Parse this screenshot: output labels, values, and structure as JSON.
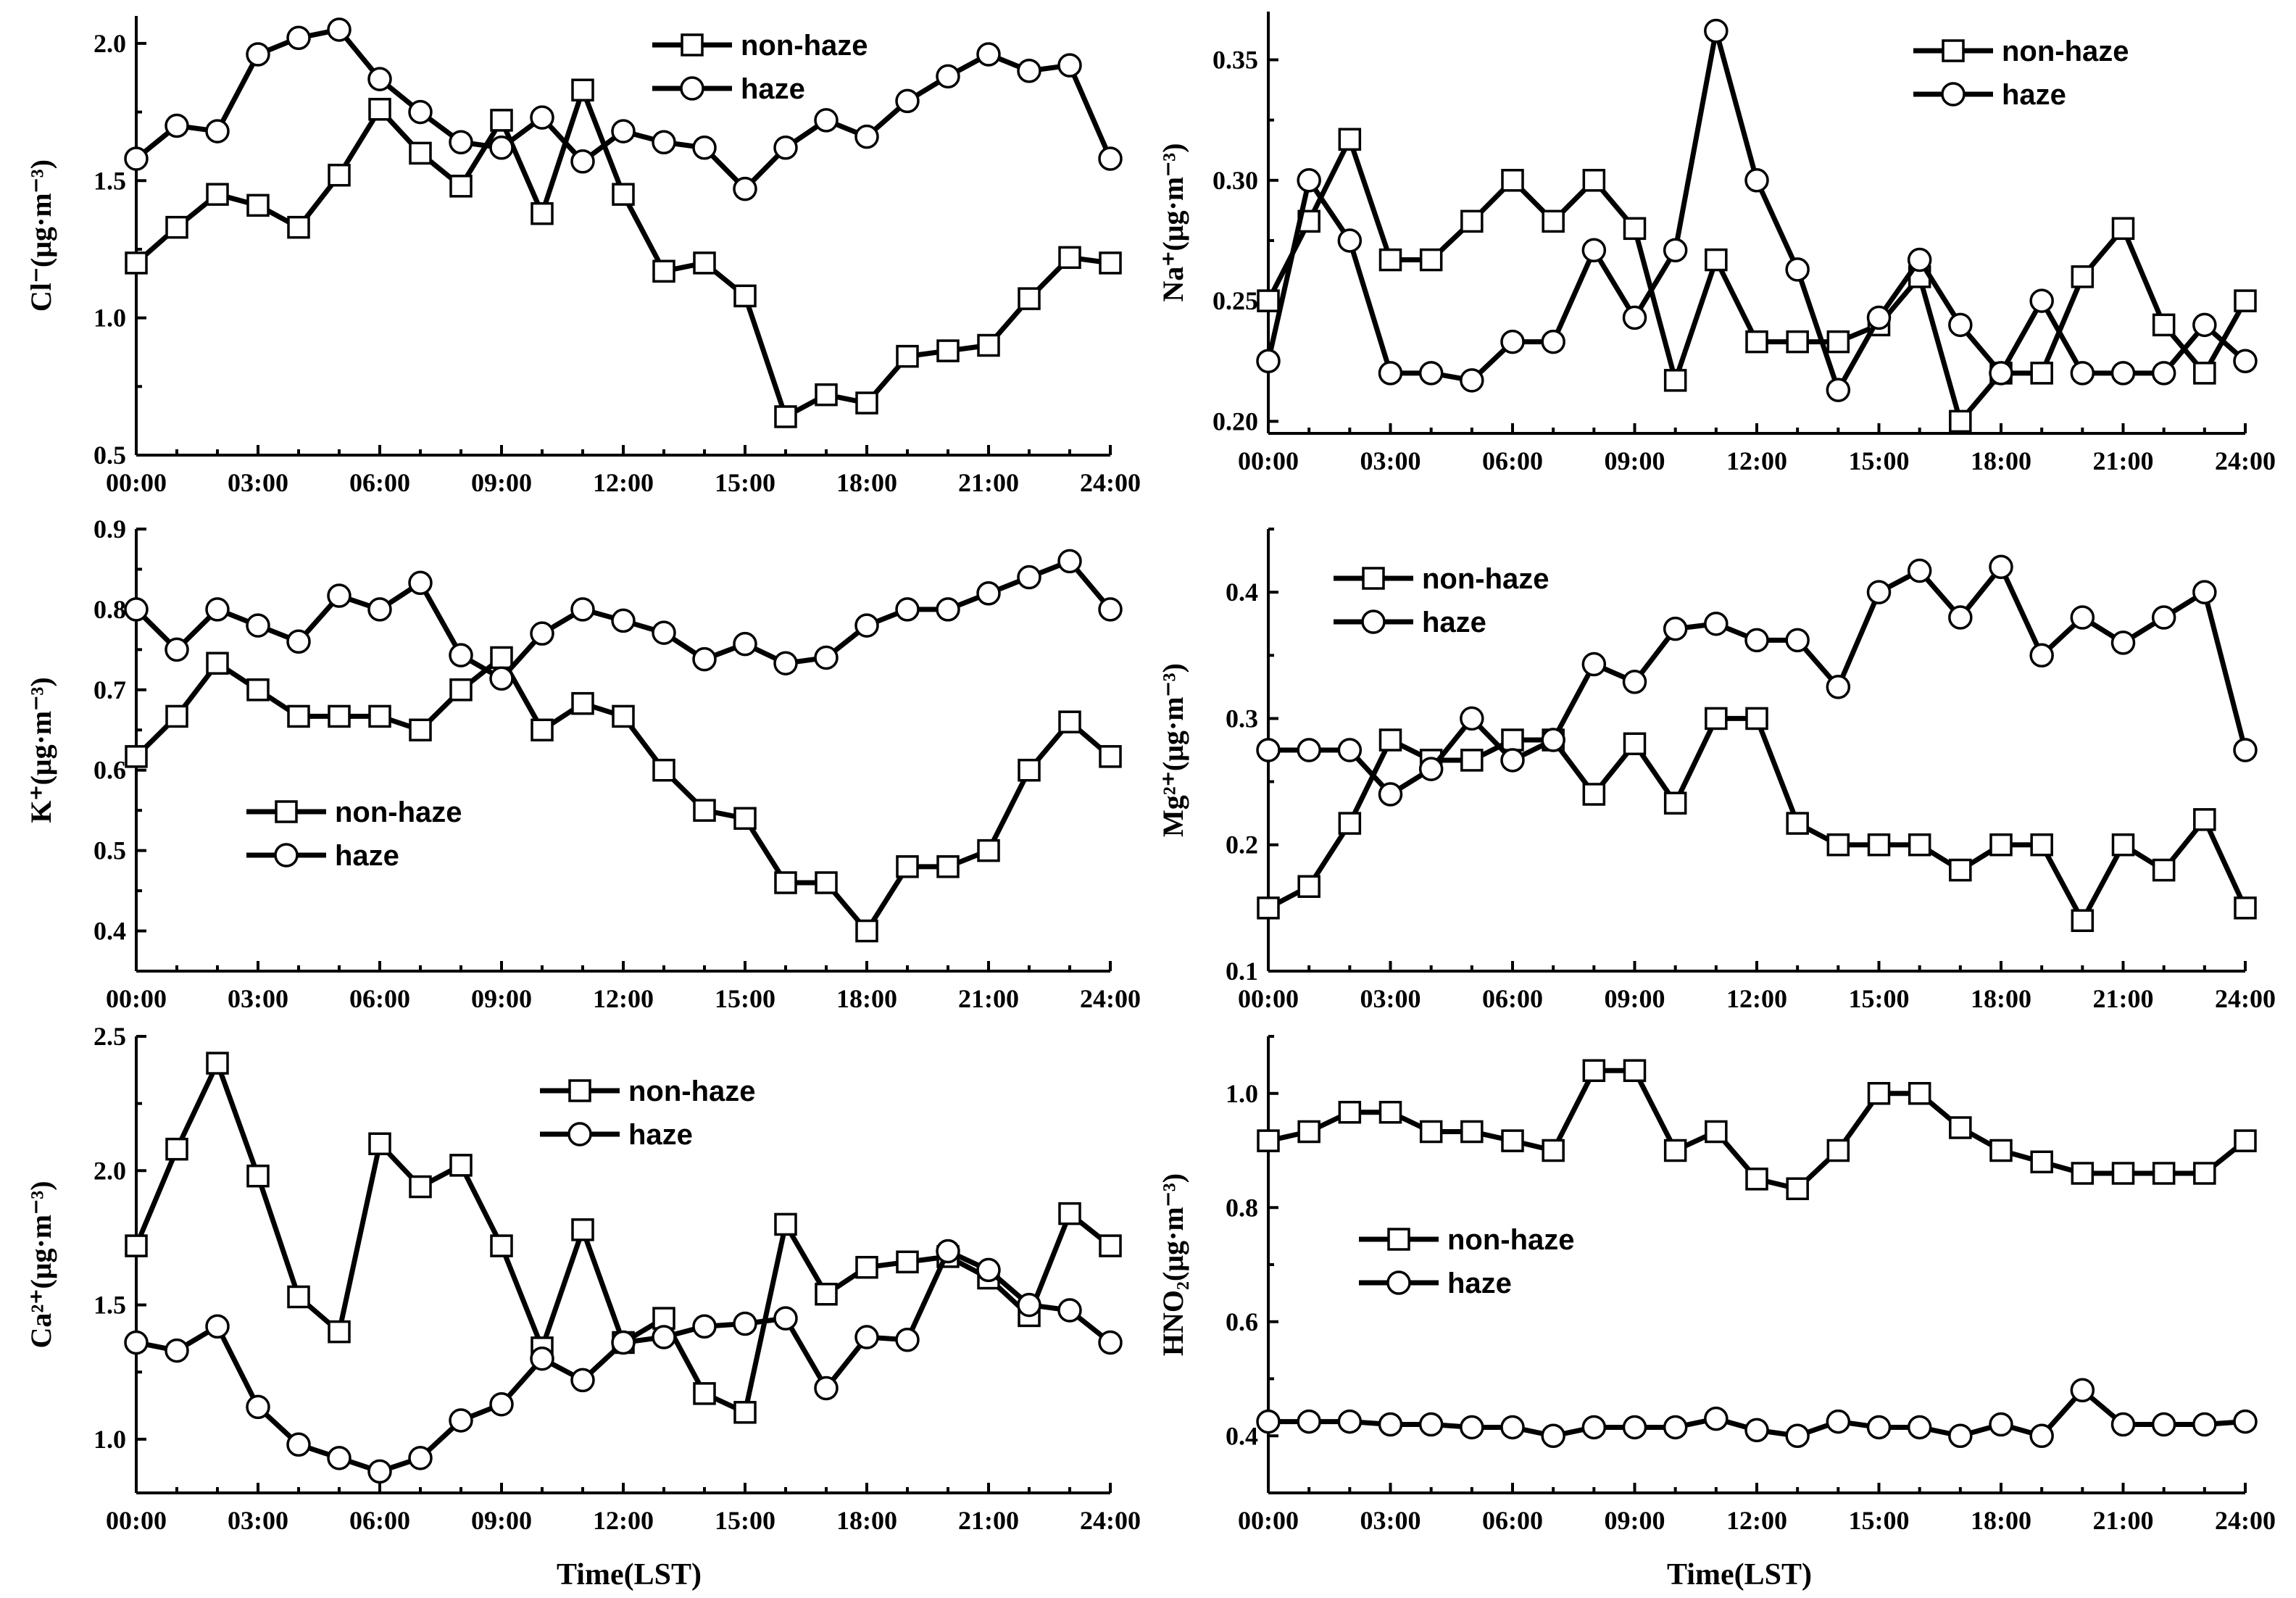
{
  "xlabel": "Time(LST)",
  "chart_data": [
    {
      "type": "line",
      "id": "cl",
      "ylabel": "Cl⁻(μg·m⁻³)",
      "ylim": [
        0.5,
        2.1
      ],
      "yticks": [
        "0.5",
        "1.0",
        "1.5",
        "2.0"
      ],
      "xticks": [
        "00:00",
        "03:00",
        "06:00",
        "09:00",
        "12:00",
        "15:00",
        "18:00",
        "21:00",
        "24:00"
      ],
      "x": [
        0,
        1,
        2,
        3,
        4,
        5,
        6,
        7,
        8,
        9,
        10,
        11,
        12,
        13,
        14,
        15,
        16,
        17,
        18,
        19,
        20,
        21,
        22,
        23,
        24
      ],
      "legend": "top-right",
      "series": [
        {
          "name": "non-haze",
          "marker": "square",
          "values": [
            1.2,
            1.33,
            1.45,
            1.41,
            1.33,
            1.52,
            1.76,
            1.6,
            1.48,
            1.72,
            1.38,
            1.83,
            1.45,
            1.17,
            1.2,
            1.08,
            0.64,
            0.72,
            0.69,
            0.86,
            0.88,
            0.9,
            1.07,
            1.22,
            1.2
          ]
        },
        {
          "name": "haze",
          "marker": "circle",
          "values": [
            1.58,
            1.7,
            1.68,
            1.96,
            2.02,
            2.05,
            1.87,
            1.75,
            1.64,
            1.62,
            1.73,
            1.57,
            1.68,
            1.64,
            1.62,
            1.47,
            1.62,
            1.72,
            1.66,
            1.79,
            1.88,
            1.96,
            1.9,
            1.92,
            1.58
          ]
        }
      ]
    },
    {
      "type": "line",
      "id": "na",
      "ylabel": "Na⁺(μg·m⁻³)",
      "ylim": [
        0.195,
        0.37
      ],
      "yticks": [
        "0.20",
        "0.25",
        "0.30",
        "0.35"
      ],
      "xticks": [
        "00:00",
        "03:00",
        "06:00",
        "09:00",
        "12:00",
        "15:00",
        "18:00",
        "21:00",
        "24:00"
      ],
      "x": [
        0,
        1,
        2,
        3,
        4,
        5,
        6,
        7,
        8,
        9,
        10,
        11,
        12,
        13,
        14,
        15,
        16,
        17,
        18,
        19,
        20,
        21,
        22,
        23,
        24
      ],
      "legend": "top-right",
      "series": [
        {
          "name": "non-haze",
          "marker": "square",
          "values": [
            0.25,
            0.283,
            0.317,
            0.267,
            0.267,
            0.283,
            0.3,
            0.283,
            0.3,
            0.28,
            0.217,
            0.267,
            0.233,
            0.233,
            0.233,
            0.24,
            0.26,
            0.2,
            0.22,
            0.22,
            0.26,
            0.28,
            0.24,
            0.22,
            0.25
          ]
        },
        {
          "name": "haze",
          "marker": "circle",
          "values": [
            0.225,
            0.3,
            0.275,
            0.22,
            0.22,
            0.217,
            0.233,
            0.233,
            0.271,
            0.243,
            0.271,
            0.362,
            0.3,
            0.263,
            0.213,
            0.243,
            0.267,
            0.24,
            0.22,
            0.25,
            0.22,
            0.22,
            0.22,
            0.24,
            0.225
          ]
        }
      ]
    },
    {
      "type": "line",
      "id": "k",
      "ylabel": "K⁺(μg·m⁻³)",
      "ylim": [
        0.35,
        0.9
      ],
      "yticks": [
        "0.4",
        "0.5",
        "0.6",
        "0.7",
        "0.8",
        "0.9"
      ],
      "xticks": [
        "00:00",
        "03:00",
        "06:00",
        "09:00",
        "12:00",
        "15:00",
        "18:00",
        "21:00",
        "24:00"
      ],
      "x": [
        0,
        1,
        2,
        3,
        4,
        5,
        6,
        7,
        8,
        9,
        10,
        11,
        12,
        13,
        14,
        15,
        16,
        17,
        18,
        19,
        20,
        21,
        22,
        23,
        24
      ],
      "legend": "middle-left",
      "series": [
        {
          "name": "non-haze",
          "marker": "square",
          "values": [
            0.617,
            0.667,
            0.733,
            0.7,
            0.667,
            0.667,
            0.667,
            0.65,
            0.7,
            0.74,
            0.65,
            0.683,
            0.667,
            0.6,
            0.55,
            0.54,
            0.46,
            0.46,
            0.4,
            0.48,
            0.48,
            0.5,
            0.6,
            0.66,
            0.617
          ]
        },
        {
          "name": "haze",
          "marker": "circle",
          "values": [
            0.8,
            0.75,
            0.8,
            0.78,
            0.76,
            0.817,
            0.8,
            0.833,
            0.743,
            0.714,
            0.77,
            0.8,
            0.786,
            0.771,
            0.738,
            0.757,
            0.733,
            0.74,
            0.78,
            0.8,
            0.8,
            0.82,
            0.84,
            0.86,
            0.8
          ]
        }
      ]
    },
    {
      "type": "line",
      "id": "mg",
      "ylabel": "Mg²⁺(μg·m⁻³)",
      "ylim": [
        0.1,
        0.45
      ],
      "yticks": [
        "0.1",
        "0.2",
        "0.3",
        "0.4"
      ],
      "xticks": [
        "00:00",
        "03:00",
        "06:00",
        "09:00",
        "12:00",
        "15:00",
        "18:00",
        "21:00",
        "24:00"
      ],
      "x": [
        0,
        1,
        2,
        3,
        4,
        5,
        6,
        7,
        8,
        9,
        10,
        11,
        12,
        13,
        14,
        15,
        16,
        17,
        18,
        19,
        20,
        21,
        22,
        23,
        24
      ],
      "legend": "top-left",
      "series": [
        {
          "name": "non-haze",
          "marker": "square",
          "values": [
            0.15,
            0.167,
            0.217,
            0.283,
            0.267,
            0.267,
            0.283,
            0.283,
            0.24,
            0.28,
            0.233,
            0.3,
            0.3,
            0.217,
            0.2,
            0.2,
            0.2,
            0.18,
            0.2,
            0.2,
            0.14,
            0.2,
            0.18,
            0.22,
            0.15
          ]
        },
        {
          "name": "haze",
          "marker": "circle",
          "values": [
            0.275,
            0.275,
            0.275,
            0.24,
            0.26,
            0.3,
            0.267,
            0.283,
            0.343,
            0.329,
            0.371,
            0.375,
            0.362,
            0.362,
            0.325,
            0.4,
            0.417,
            0.38,
            0.42,
            0.35,
            0.38,
            0.36,
            0.38,
            0.4,
            0.275
          ]
        }
      ]
    },
    {
      "type": "line",
      "id": "ca",
      "ylabel": "Ca²⁺(μg·m⁻³)",
      "ylim": [
        0.8,
        2.5
      ],
      "yticks": [
        "1.0",
        "1.5",
        "2.0",
        "2.5"
      ],
      "xticks": [
        "00:00",
        "03:00",
        "06:00",
        "09:00",
        "12:00",
        "15:00",
        "18:00",
        "21:00",
        "24:00"
      ],
      "x": [
        0,
        1,
        2,
        3,
        4,
        5,
        6,
        7,
        8,
        9,
        10,
        11,
        12,
        13,
        14,
        15,
        16,
        17,
        18,
        19,
        20,
        21,
        22,
        23,
        24
      ],
      "legend": "top-center",
      "series": [
        {
          "name": "non-haze",
          "marker": "square",
          "values": [
            1.72,
            2.08,
            2.4,
            1.98,
            1.53,
            1.4,
            2.1,
            1.94,
            2.02,
            1.72,
            1.34,
            1.78,
            1.36,
            1.45,
            1.17,
            1.1,
            1.8,
            1.54,
            1.64,
            1.66,
            1.68,
            1.6,
            1.46,
            1.84,
            1.72
          ]
        },
        {
          "name": "haze",
          "marker": "circle",
          "values": [
            1.36,
            1.33,
            1.42,
            1.12,
            0.98,
            0.93,
            0.88,
            0.93,
            1.07,
            1.13,
            1.3,
            1.22,
            1.36,
            1.38,
            1.42,
            1.43,
            1.45,
            1.19,
            1.38,
            1.37,
            1.7,
            1.63,
            1.5,
            1.48,
            1.36
          ]
        }
      ]
    },
    {
      "type": "line",
      "id": "hno2",
      "ylabel": "HNO₂(μg·m⁻³)",
      "ylim": [
        0.3,
        1.1
      ],
      "yticks": [
        "0.4",
        "0.6",
        "0.8",
        "1.0"
      ],
      "xticks": [
        "00:00",
        "03:00",
        "06:00",
        "09:00",
        "12:00",
        "15:00",
        "18:00",
        "21:00",
        "24:00"
      ],
      "x": [
        0,
        1,
        2,
        3,
        4,
        5,
        6,
        7,
        8,
        9,
        10,
        11,
        12,
        13,
        14,
        15,
        16,
        17,
        18,
        19,
        20,
        21,
        22,
        23,
        24
      ],
      "legend": "middle-left",
      "series": [
        {
          "name": "non-haze",
          "marker": "square",
          "values": [
            0.917,
            0.933,
            0.967,
            0.967,
            0.933,
            0.933,
            0.917,
            0.9,
            1.04,
            1.04,
            0.9,
            0.933,
            0.85,
            0.833,
            0.9,
            1.0,
            1.0,
            0.94,
            0.9,
            0.88,
            0.86,
            0.86,
            0.86,
            0.86,
            0.917
          ]
        },
        {
          "name": "haze",
          "marker": "circle",
          "values": [
            0.425,
            0.425,
            0.425,
            0.42,
            0.42,
            0.415,
            0.415,
            0.4,
            0.415,
            0.415,
            0.415,
            0.43,
            0.41,
            0.4,
            0.425,
            0.415,
            0.415,
            0.4,
            0.42,
            0.4,
            0.48,
            0.42,
            0.42,
            0.42,
            0.425
          ]
        }
      ]
    }
  ]
}
